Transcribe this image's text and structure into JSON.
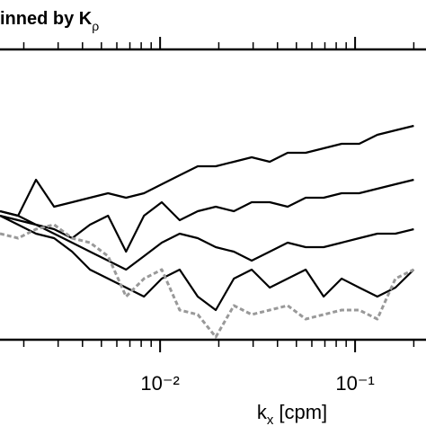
{
  "chart_data": {
    "type": "line",
    "title": "inned by K",
    "title_subscript": "ρ",
    "xlabel": {
      "main": "k",
      "subscript": "x",
      "unit": "[cpm]"
    },
    "xscale": "log",
    "xlim": [
      0.00151,
      0.231
    ],
    "ylim": [
      0,
      323
    ],
    "xticks": [
      {
        "value": 0.01,
        "label": "10⁻²"
      },
      {
        "value": 0.1,
        "label": "10⁻¹"
      }
    ],
    "minor_xticks": [
      0.002,
      0.003,
      0.004,
      0.005,
      0.006,
      0.007,
      0.008,
      0.009,
      0.02,
      0.03,
      0.04,
      0.05,
      0.06,
      0.07,
      0.08,
      0.09,
      0.2
    ],
    "x": [
      0.00151,
      0.00187,
      0.00231,
      0.00286,
      0.00354,
      0.00437,
      0.00541,
      0.00669,
      0.00827,
      0.0102,
      0.0126,
      0.0156,
      0.0193,
      0.0239,
      0.0295,
      0.0365,
      0.0451,
      0.0558,
      0.069,
      0.0853,
      0.105,
      0.13,
      0.161,
      0.2
    ],
    "series": [
      {
        "color": "#000000",
        "dash": false,
        "values": [
          143,
          138,
          178,
          148,
          153,
          158,
          163,
          158,
          163,
          173,
          183,
          193,
          193,
          198,
          203,
          198,
          208,
          208,
          213,
          218,
          218,
          228,
          233,
          238
        ]
      },
      {
        "color": "#000000",
        "dash": false,
        "values": [
          138,
          133,
          128,
          123,
          113,
          128,
          138,
          98,
          138,
          153,
          133,
          143,
          148,
          143,
          153,
          153,
          148,
          158,
          158,
          163,
          163,
          168,
          173,
          178
        ]
      },
      {
        "color": "#000000",
        "dash": false,
        "values": [
          143,
          138,
          128,
          118,
          108,
          98,
          88,
          78,
          93,
          108,
          118,
          113,
          103,
          98,
          88,
          98,
          108,
          103,
          103,
          108,
          113,
          118,
          118,
          123
        ]
      },
      {
        "color": "#000000",
        "dash": false,
        "values": [
          138,
          128,
          118,
          113,
          98,
          78,
          68,
          58,
          48,
          68,
          78,
          48,
          33,
          68,
          78,
          58,
          68,
          78,
          48,
          68,
          58,
          48,
          58,
          78
        ]
      },
      {
        "color": "#999999",
        "dash": true,
        "values": [
          118,
          113,
          123,
          128,
          113,
          108,
          93,
          48,
          68,
          78,
          33,
          28,
          3,
          38,
          28,
          33,
          38,
          23,
          28,
          33,
          33,
          23,
          68,
          78
        ]
      }
    ]
  }
}
